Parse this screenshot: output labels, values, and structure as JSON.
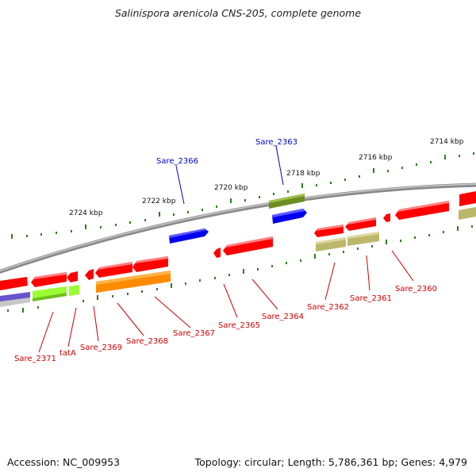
{
  "title": "Salinispora arenicola CNS-205, complete genome",
  "footer": {
    "accession": "Accession: NC_009953",
    "summary": "Topology: circular; Length: 5,786,361 bp; Genes: 4,979"
  },
  "scale_labels": [
    "2714 kbp",
    "2716 kbp",
    "2718 kbp",
    "2720 kbp",
    "2722 kbp",
    "2724 kbp"
  ],
  "gene_labels_top": [
    "Sare_2366",
    "Sare_2363"
  ],
  "gene_labels_bottom": [
    "Sare_2371",
    "tatA",
    "Sare_2369",
    "Sare_2368",
    "Sare_2367",
    "Sare_2365",
    "Sare_2364",
    "Sare_2362",
    "Sare_2361",
    "Sare_2360"
  ],
  "colors": {
    "cds": "#ff0000",
    "tatA": "#99ff33",
    "rna_like": "#ff9900",
    "olive": "#bdb76b",
    "dark_olive": "#6b8e23",
    "blue": "#0000ff",
    "label_blue": "#0000cc",
    "label_red": "#cc0000",
    "backbone": "#808080",
    "tick": "#2e7d1a"
  }
}
